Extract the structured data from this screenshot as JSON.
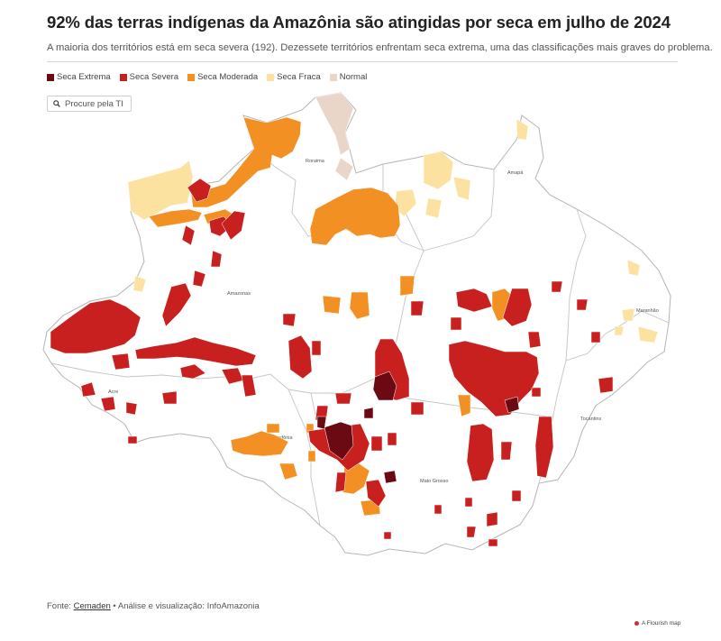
{
  "title": "92% das terras indígenas da Amazônia são atingidas por seca em julho de 2024",
  "subtitle": "A maioria dos territórios está em seca severa (192). Dezessete territórios enfrentam seca extrema, uma das classificações mais graves do problema.",
  "legend": [
    {
      "label": "Seca Extrema",
      "color": "#6b0a12"
    },
    {
      "label": "Seca Severa",
      "color": "#c8201f"
    },
    {
      "label": "Seca Moderada",
      "color": "#f39023"
    },
    {
      "label": "Seca Fraca",
      "color": "#fce2a0"
    },
    {
      "label": "Normal",
      "color": "#e9d6c9"
    }
  ],
  "search": {
    "placeholder": "Procure pela TI"
  },
  "states": {
    "roraima": "Roraima",
    "amapa": "Amapá",
    "amazonas": "Amazonas",
    "maranhao": "Maranhão",
    "acre": "Acre",
    "rondonia": "Rondônia",
    "tocantins": "Tocantins",
    "mato_grosso": "Mato Grosso"
  },
  "footer": {
    "prefix": "Fonte: ",
    "source_link": "Cemaden",
    "suffix": " • Análise e visualização: InfoAmazonia"
  },
  "credit": "A Flourish map"
}
